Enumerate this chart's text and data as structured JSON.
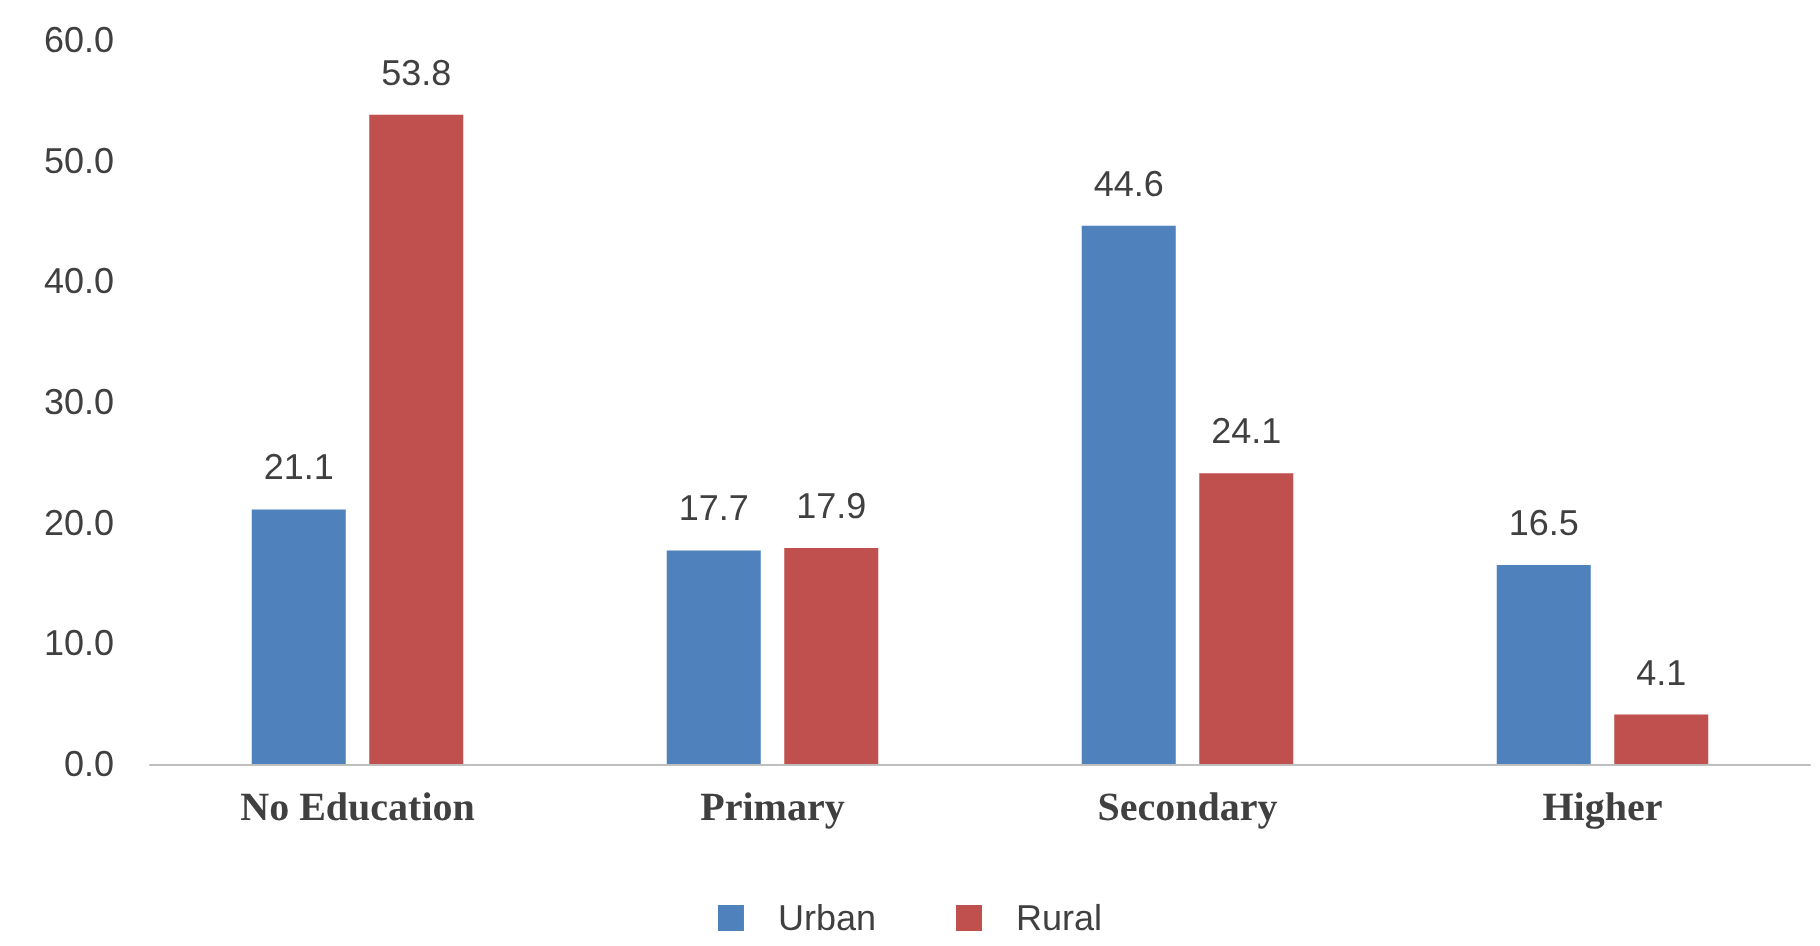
{
  "chart_data": {
    "type": "bar",
    "categories": [
      "No Education",
      "Primary",
      "Secondary",
      "Higher"
    ],
    "series": [
      {
        "name": "Urban",
        "color": "#4f81bd",
        "values": [
          21.1,
          17.7,
          44.6,
          16.5
        ]
      },
      {
        "name": "Rural",
        "color": "#c0504d",
        "values": [
          53.8,
          17.9,
          24.1,
          4.1
        ]
      }
    ],
    "ylim": [
      0,
      60
    ],
    "yticks": [
      {
        "value": 0,
        "label": "0.0"
      },
      {
        "value": 10,
        "label": "10.0"
      },
      {
        "value": 20,
        "label": "20.0"
      },
      {
        "value": 30,
        "label": "30.0"
      },
      {
        "value": 40,
        "label": "40.0"
      },
      {
        "value": 50,
        "label": "50.0"
      },
      {
        "value": 60,
        "label": "60.0"
      }
    ],
    "grid": false,
    "legend": "bottom",
    "data_labels": true
  }
}
